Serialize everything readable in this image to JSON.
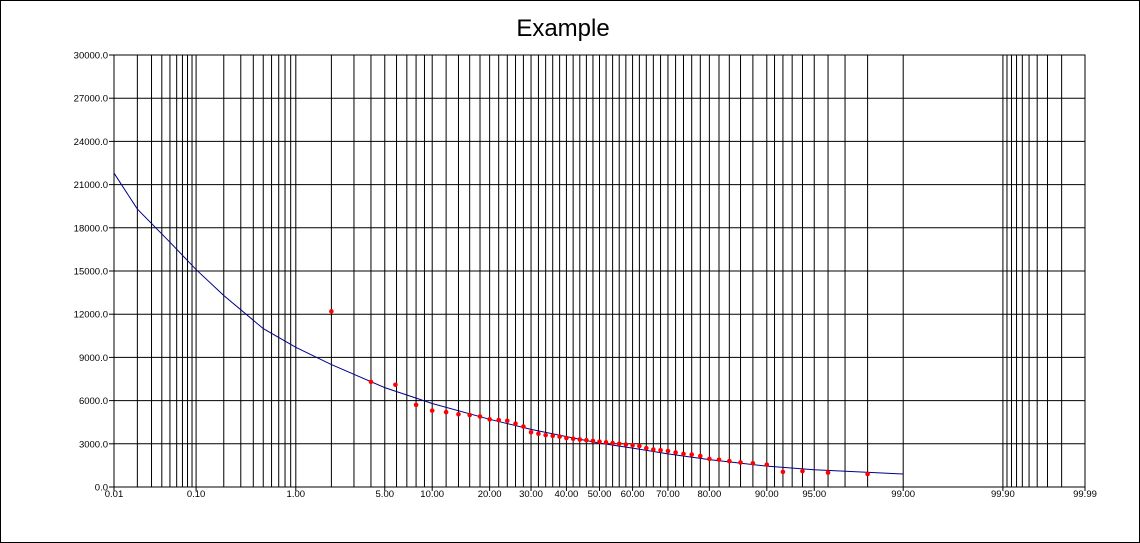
{
  "chart_data": {
    "type": "scatter",
    "title": "Example",
    "x_scale": "probability",
    "xlim": [
      0.01,
      99.99
    ],
    "ylim": [
      0,
      30000
    ],
    "grid": true,
    "legend": "none",
    "x_major_ticks": [
      {
        "value": 0.01,
        "label": "0.01"
      },
      {
        "value": 0.1,
        "label": "0.10"
      },
      {
        "value": 1,
        "label": "1.00"
      },
      {
        "value": 5,
        "label": "5.00"
      },
      {
        "value": 10,
        "label": "10.00"
      },
      {
        "value": 20,
        "label": "20.00"
      },
      {
        "value": 30,
        "label": "30.00"
      },
      {
        "value": 40,
        "label": "40.00"
      },
      {
        "value": 50,
        "label": "50.00"
      },
      {
        "value": 60,
        "label": "60.00"
      },
      {
        "value": 70,
        "label": "70.00"
      },
      {
        "value": 80,
        "label": "80.00"
      },
      {
        "value": 90,
        "label": "90.00"
      },
      {
        "value": 95,
        "label": "95.00"
      },
      {
        "value": 99,
        "label": "99.00"
      },
      {
        "value": 99.9,
        "label": "99.90"
      },
      {
        "value": 99.99,
        "label": "99.99"
      }
    ],
    "x_gridlines": [
      0.01,
      0.02,
      0.03,
      0.04,
      0.05,
      0.06,
      0.07,
      0.08,
      0.09,
      0.1,
      0.2,
      0.3,
      0.4,
      0.5,
      0.6,
      0.7,
      0.8,
      0.9,
      1,
      2,
      3,
      4,
      5,
      6,
      7,
      8,
      9,
      10,
      12,
      14,
      16,
      18,
      20,
      22,
      24,
      26,
      28,
      30,
      32,
      34,
      36,
      38,
      40,
      42,
      44,
      46,
      48,
      50,
      52,
      54,
      56,
      58,
      60,
      62,
      64,
      66,
      68,
      70,
      72,
      74,
      76,
      78,
      80,
      82,
      84,
      86,
      88,
      90,
      91,
      92,
      93,
      94,
      95,
      96,
      97,
      98,
      99,
      99.9,
      99.91,
      99.92,
      99.93,
      99.94,
      99.95,
      99.96,
      99.97,
      99.98,
      99.99
    ],
    "y_ticks": [
      {
        "value": 0,
        "label": "0.0"
      },
      {
        "value": 3000,
        "label": "3000.0"
      },
      {
        "value": 6000,
        "label": "6000.0"
      },
      {
        "value": 9000,
        "label": "9000.0"
      },
      {
        "value": 12000,
        "label": "12000.0"
      },
      {
        "value": 15000,
        "label": "15000.0"
      },
      {
        "value": 18000,
        "label": "18000.0"
      },
      {
        "value": 21000,
        "label": "21000.0"
      },
      {
        "value": 24000,
        "label": "24000.0"
      },
      {
        "value": 27000,
        "label": "27000.0"
      },
      {
        "value": 30000,
        "label": "30000.0"
      }
    ],
    "points": {
      "color": "#ff0000",
      "x": [
        2.0,
        4.0,
        5.9,
        8.0,
        10.0,
        12.0,
        14.0,
        16.0,
        18.0,
        20.0,
        22.0,
        24.0,
        26.0,
        28.0,
        30.0,
        32.0,
        34.0,
        36.0,
        38.0,
        40.0,
        42.0,
        44.0,
        46.0,
        48.0,
        50.0,
        52.0,
        54.0,
        56.0,
        58.0,
        60.0,
        62.0,
        64.0,
        66.0,
        68.0,
        70.0,
        72.0,
        74.0,
        76.0,
        78.0,
        80.0,
        82.0,
        84.0,
        86.0,
        88.0,
        90.0,
        92.0,
        94.0,
        96.0,
        98.0
      ],
      "y": [
        12200,
        7300,
        7100,
        5700,
        5300,
        5200,
        5050,
        5000,
        4900,
        4700,
        4650,
        4600,
        4400,
        4200,
        3800,
        3700,
        3600,
        3550,
        3500,
        3400,
        3350,
        3300,
        3250,
        3200,
        3150,
        3100,
        3050,
        3000,
        2950,
        2900,
        2850,
        2700,
        2600,
        2550,
        2500,
        2400,
        2300,
        2250,
        2150,
        1950,
        1900,
        1800,
        1700,
        1650,
        1550,
        1050,
        1100,
        1000,
        900
      ]
    },
    "fit_line": {
      "color": "#00008b",
      "x": [
        0.01,
        0.02,
        0.05,
        0.1,
        0.2,
        0.5,
        1,
        2,
        5,
        10,
        20,
        30,
        40,
        50,
        60,
        70,
        80,
        90,
        95,
        99
      ],
      "y": [
        21800,
        19300,
        17000,
        15100,
        13300,
        11000,
        9700,
        8500,
        6900,
        5800,
        4700,
        4000,
        3500,
        3050,
        2700,
        2300,
        1900,
        1450,
        1200,
        900
      ]
    }
  }
}
